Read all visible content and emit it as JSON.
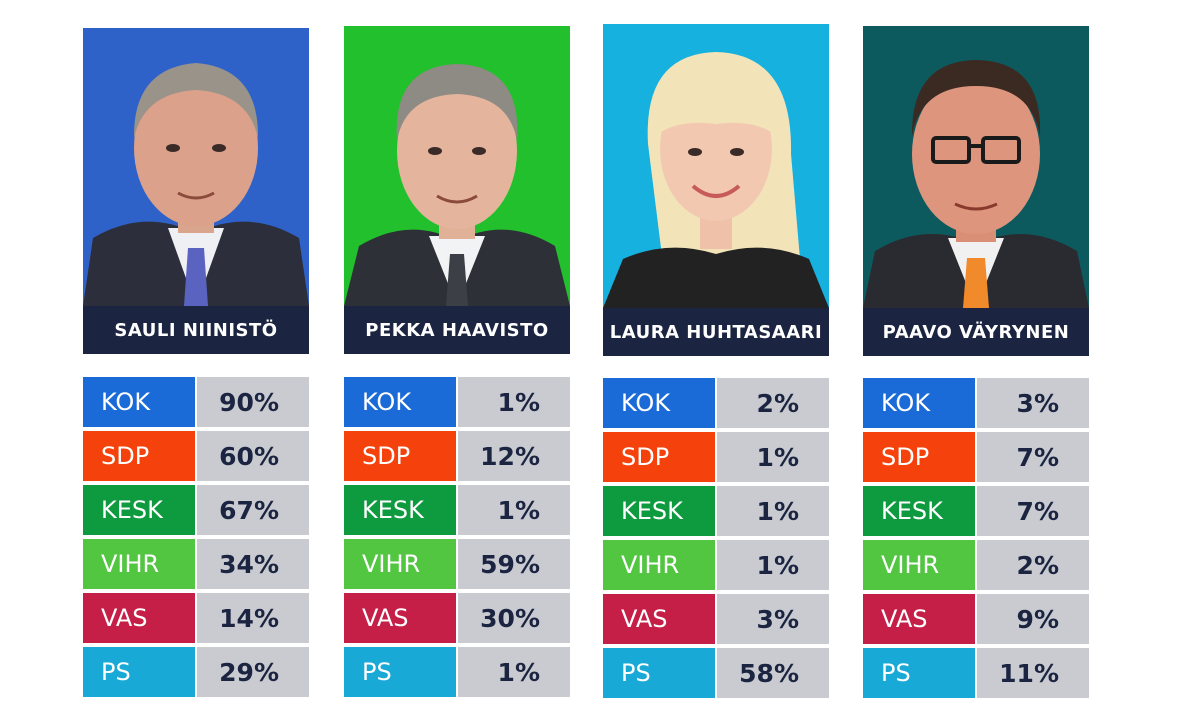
{
  "colors": {
    "navy": "#1b2440",
    "value_bg": "#c9cbd1",
    "KOK": "#1a6ad8",
    "SDP": "#f5420c",
    "KESK": "#0e9a3e",
    "VIHR": "#52c541",
    "VAS": "#c51f48",
    "PS": "#19a9d6"
  },
  "parties": [
    "KOK",
    "SDP",
    "KESK",
    "VIHR",
    "VAS",
    "PS"
  ],
  "candidates": [
    {
      "name": "SAULI NIINISTÖ",
      "photo_bg": "#2f62c9",
      "tie": "#5a63c0",
      "hair": "#9a9389",
      "values": [
        "90%",
        "60%",
        "67%",
        "34%",
        "14%",
        "29%"
      ]
    },
    {
      "name": "PEKKA HAAVISTO",
      "photo_bg": "#22c02c",
      "tie": "#3c4046",
      "hair": "#8e8a84",
      "values": [
        "1%",
        "12%",
        "1%",
        "59%",
        "30%",
        "1%"
      ]
    },
    {
      "name": "LAURA HUHTASAARI",
      "photo_bg": "#17b1e0",
      "tie": "#222222",
      "hair": "#f2e4b8",
      "values": [
        "2%",
        "1%",
        "1%",
        "1%",
        "3%",
        "58%"
      ]
    },
    {
      "name": "PAAVO VÄYRYNEN",
      "photo_bg": "#0d5a5e",
      "tie": "#f08a2a",
      "hair": "#3b2a22",
      "values": [
        "3%",
        "7%",
        "7%",
        "2%",
        "9%",
        "11%"
      ]
    }
  ]
}
